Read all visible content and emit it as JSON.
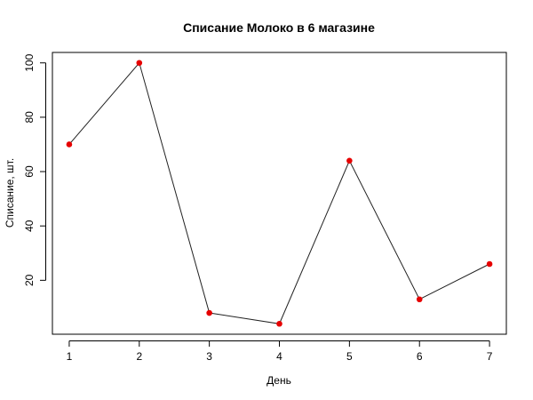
{
  "chart_data": {
    "type": "line",
    "title": "Списание Молоко в 6 магазине",
    "xlabel": "День",
    "ylabel": "Списание, шт.",
    "x": [
      1,
      2,
      3,
      4,
      5,
      6,
      7
    ],
    "values": [
      70,
      100,
      8,
      4,
      64,
      13,
      26
    ],
    "xlim": [
      0.76,
      7.24
    ],
    "ylim": [
      0.16,
      103.84
    ],
    "x_ticks": [
      1,
      2,
      3,
      4,
      5,
      6,
      7
    ],
    "y_ticks": [
      20,
      40,
      60,
      80,
      100
    ],
    "grid": false,
    "line_color": "#222222",
    "point_color": "#e60000"
  }
}
